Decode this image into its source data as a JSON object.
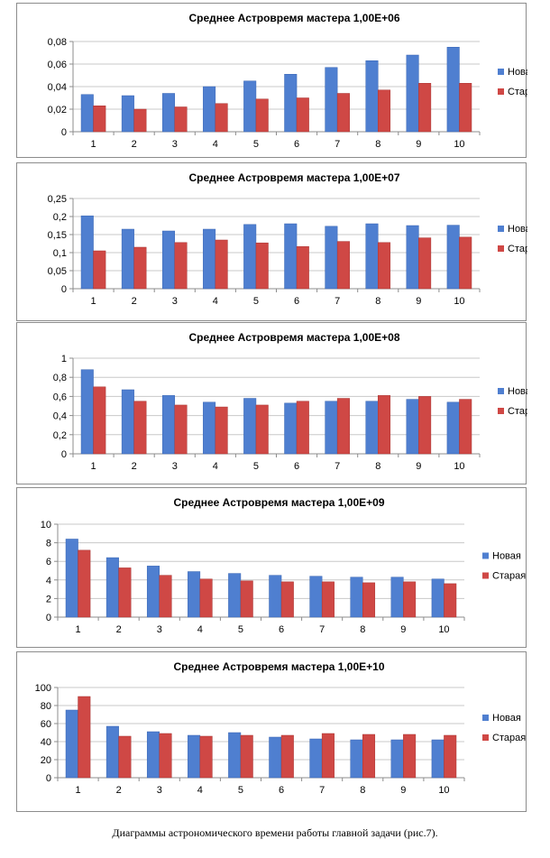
{
  "chart_data": [
    {
      "type": "bar",
      "title": "Среднее Астровремя мастера  1,00E+06",
      "categories": [
        "1",
        "2",
        "3",
        "4",
        "5",
        "6",
        "7",
        "8",
        "9",
        "10"
      ],
      "series": [
        {
          "name": "Новая",
          "values": [
            0.033,
            0.032,
            0.034,
            0.04,
            0.045,
            0.051,
            0.057,
            0.063,
            0.068,
            0.075
          ]
        },
        {
          "name": "Старая",
          "values": [
            0.023,
            0.02,
            0.022,
            0.025,
            0.029,
            0.03,
            0.034,
            0.037,
            0.043,
            0.043
          ]
        }
      ],
      "yticks": [
        "0",
        "0,02",
        "0,04",
        "0,06",
        "0,08"
      ],
      "ylim": [
        0,
        0.08
      ],
      "grid": true,
      "legend": "right"
    },
    {
      "type": "bar",
      "title": "Среднее Астровремя мастера  1,00E+07",
      "categories": [
        "1",
        "2",
        "3",
        "4",
        "5",
        "6",
        "7",
        "8",
        "9",
        "10"
      ],
      "series": [
        {
          "name": "Новая",
          "values": [
            0.202,
            0.165,
            0.16,
            0.165,
            0.178,
            0.18,
            0.173,
            0.18,
            0.175,
            0.176
          ]
        },
        {
          "name": "Старая",
          "values": [
            0.105,
            0.115,
            0.128,
            0.135,
            0.127,
            0.117,
            0.131,
            0.128,
            0.141,
            0.143
          ]
        }
      ],
      "yticks": [
        "0",
        "0,05",
        "0,1",
        "0,15",
        "0,2",
        "0,25"
      ],
      "ylim": [
        0,
        0.25
      ],
      "grid": true,
      "legend": "right"
    },
    {
      "type": "bar",
      "title": "Среднее Астровремя мастера  1,00E+08",
      "categories": [
        "1",
        "2",
        "3",
        "4",
        "5",
        "6",
        "7",
        "8",
        "9",
        "10"
      ],
      "series": [
        {
          "name": "Новая",
          "values": [
            0.88,
            0.67,
            0.61,
            0.54,
            0.58,
            0.53,
            0.55,
            0.55,
            0.57,
            0.54
          ]
        },
        {
          "name": "Старая",
          "values": [
            0.7,
            0.55,
            0.51,
            0.49,
            0.51,
            0.55,
            0.58,
            0.61,
            0.6,
            0.57
          ]
        }
      ],
      "yticks": [
        "0",
        "0,2",
        "0,4",
        "0,6",
        "0,8",
        "1"
      ],
      "ylim": [
        0,
        1
      ],
      "grid": true,
      "legend": "right"
    },
    {
      "type": "bar",
      "title": "Среднее Астровремя мастера  1,00E+09",
      "categories": [
        "1",
        "2",
        "3",
        "4",
        "5",
        "6",
        "7",
        "8",
        "9",
        "10"
      ],
      "series": [
        {
          "name": "Новая",
          "values": [
            8.4,
            6.4,
            5.5,
            4.9,
            4.7,
            4.5,
            4.4,
            4.3,
            4.3,
            4.1
          ]
        },
        {
          "name": "Старая",
          "values": [
            7.2,
            5.3,
            4.5,
            4.1,
            3.9,
            3.8,
            3.8,
            3.7,
            3.8,
            3.6
          ]
        }
      ],
      "yticks": [
        "0",
        "2",
        "4",
        "6",
        "8",
        "10"
      ],
      "ylim": [
        0,
        10
      ],
      "grid": true,
      "legend": "right"
    },
    {
      "type": "bar",
      "title": "Среднее Астровремя мастера  1,00E+10",
      "categories": [
        "1",
        "2",
        "3",
        "4",
        "5",
        "6",
        "7",
        "8",
        "9",
        "10"
      ],
      "series": [
        {
          "name": "Новая",
          "values": [
            75,
            57,
            51,
            47,
            50,
            45,
            43,
            42,
            42,
            42
          ]
        },
        {
          "name": "Старая",
          "values": [
            90,
            46,
            49,
            46,
            47,
            47,
            49,
            48,
            48,
            47
          ]
        }
      ],
      "yticks": [
        "0",
        "20",
        "40",
        "60",
        "80",
        "100"
      ],
      "ylim": [
        0,
        100
      ],
      "grid": true,
      "legend": "right"
    }
  ],
  "colors": {
    "series": [
      "#4f7fd0",
      "#cf4845"
    ],
    "axis": "#8c8c8c",
    "grid": "#c8c8c8"
  },
  "caption": "Диаграммы астрономического времени работы главной задачи (рис.7)."
}
